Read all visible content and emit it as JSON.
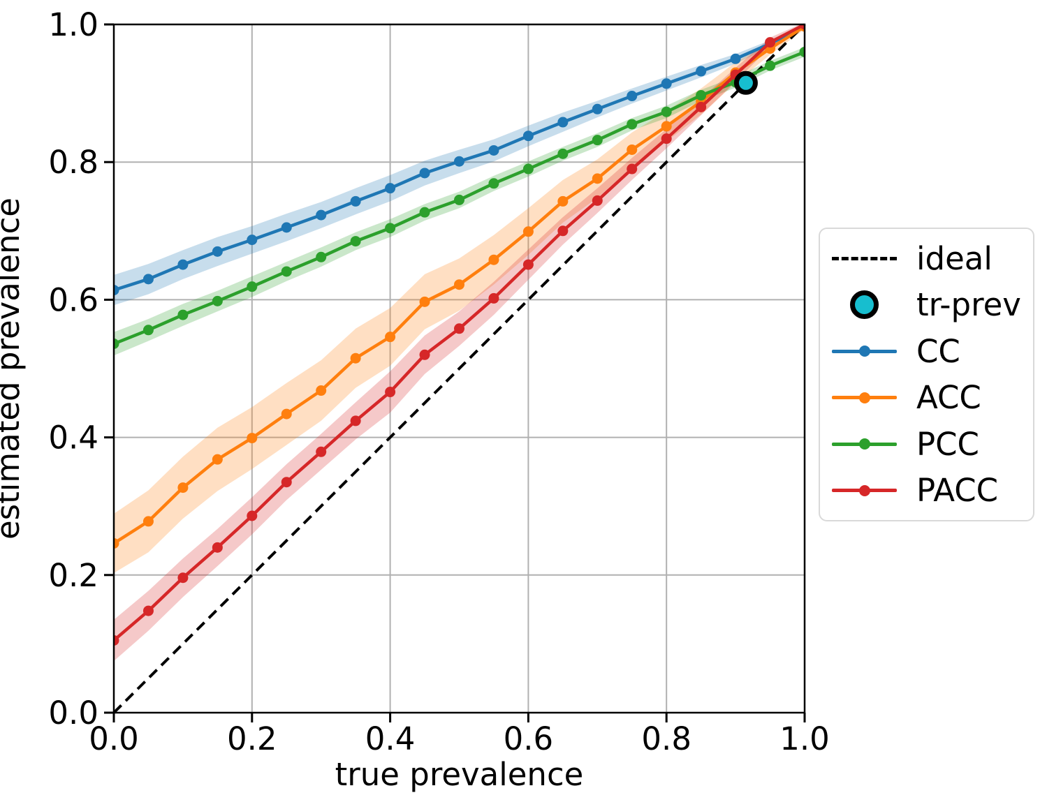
{
  "chart_data": {
    "type": "line",
    "title": "",
    "xlabel": "true prevalence",
    "ylabel": "estimated prevalence",
    "xlim": [
      0.0,
      1.0
    ],
    "ylim": [
      0.0,
      1.0
    ],
    "grid": true,
    "x_tick_values": [
      0.0,
      0.2,
      0.4,
      0.6,
      0.8,
      1.0
    ],
    "x_tick_labels": [
      "0.0",
      "0.2",
      "0.4",
      "0.6",
      "0.8",
      "1.0"
    ],
    "y_tick_values": [
      0.0,
      0.2,
      0.4,
      0.6,
      0.8,
      1.0
    ],
    "y_tick_labels": [
      "0.0",
      "0.2",
      "0.4",
      "0.6",
      "0.8",
      "1.0"
    ],
    "x": [
      0.0,
      0.05,
      0.1,
      0.15,
      0.2,
      0.25,
      0.3,
      0.35,
      0.4,
      0.45,
      0.5,
      0.55,
      0.6,
      0.65,
      0.7,
      0.75,
      0.8,
      0.85,
      0.9,
      0.95,
      1.0
    ],
    "series": [
      {
        "name": "CC",
        "color": "#1f77b4",
        "values": [
          0.614,
          0.63,
          0.651,
          0.67,
          0.687,
          0.705,
          0.723,
          0.743,
          0.762,
          0.784,
          0.801,
          0.817,
          0.838,
          0.858,
          0.877,
          0.896,
          0.914,
          0.932,
          0.95,
          0.972,
          0.998
        ],
        "band_halfwidth": [
          0.022,
          0.022,
          0.021,
          0.021,
          0.02,
          0.02,
          0.019,
          0.019,
          0.019,
          0.018,
          0.017,
          0.016,
          0.015,
          0.014,
          0.012,
          0.011,
          0.01,
          0.009,
          0.007,
          0.005,
          0.003
        ]
      },
      {
        "name": "ACC",
        "color": "#ff7f0e",
        "values": [
          0.246,
          0.278,
          0.327,
          0.368,
          0.399,
          0.434,
          0.468,
          0.515,
          0.546,
          0.597,
          0.622,
          0.658,
          0.699,
          0.743,
          0.776,
          0.818,
          0.852,
          0.888,
          0.93,
          0.965,
          0.997
        ],
        "band_halfwidth": [
          0.043,
          0.045,
          0.045,
          0.046,
          0.045,
          0.045,
          0.044,
          0.043,
          0.042,
          0.04,
          0.038,
          0.036,
          0.034,
          0.031,
          0.028,
          0.025,
          0.022,
          0.019,
          0.015,
          0.009,
          0.004
        ]
      },
      {
        "name": "PCC",
        "color": "#2ca02c",
        "values": [
          0.536,
          0.556,
          0.578,
          0.598,
          0.619,
          0.641,
          0.662,
          0.685,
          0.704,
          0.727,
          0.745,
          0.769,
          0.79,
          0.812,
          0.832,
          0.855,
          0.873,
          0.897,
          0.916,
          0.94,
          0.96
        ],
        "band_halfwidth": [
          0.017,
          0.016,
          0.016,
          0.015,
          0.015,
          0.014,
          0.014,
          0.013,
          0.013,
          0.012,
          0.012,
          0.011,
          0.011,
          0.01,
          0.01,
          0.009,
          0.009,
          0.008,
          0.008,
          0.007,
          0.007
        ]
      },
      {
        "name": "PACC",
        "color": "#d62728",
        "values": [
          0.105,
          0.148,
          0.196,
          0.24,
          0.286,
          0.335,
          0.379,
          0.424,
          0.466,
          0.52,
          0.558,
          0.602,
          0.651,
          0.7,
          0.744,
          0.79,
          0.834,
          0.88,
          0.927,
          0.974,
          1.0
        ],
        "band_halfwidth": [
          0.03,
          0.029,
          0.028,
          0.027,
          0.027,
          0.026,
          0.026,
          0.027,
          0.03,
          0.028,
          0.025,
          0.024,
          0.022,
          0.02,
          0.018,
          0.016,
          0.014,
          0.012,
          0.01,
          0.007,
          0.003
        ]
      }
    ],
    "ideal": {
      "label": "ideal",
      "from": [
        0.0,
        0.0
      ],
      "to": [
        1.0,
        1.0
      ],
      "color": "#000000"
    },
    "tr_prev": {
      "label": "tr-prev",
      "x": 0.915,
      "y": 0.915,
      "fill": "#17becf",
      "edge": "#000000"
    },
    "legend_position": "center right, outside axes",
    "band_opacity": 0.25,
    "grid_color": "#b0b0b0"
  }
}
